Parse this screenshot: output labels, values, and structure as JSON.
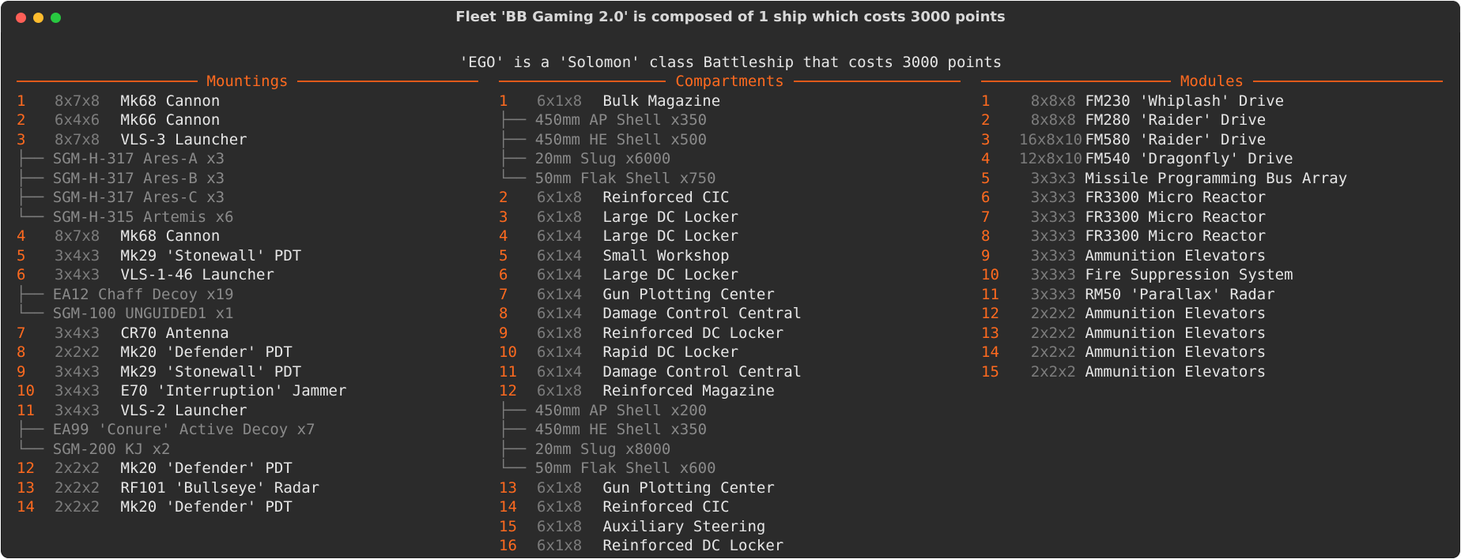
{
  "window": {
    "title": "Fleet 'BB Gaming 2.0' is composed of 1 ship which costs 3000 points"
  },
  "ship_heading": "'EGO' is a 'Solomon' class Battleship that costs 3000 points",
  "colors": {
    "accent": "#ff6a1f",
    "dim": "#7c7c7c",
    "text": "#e6e6e6",
    "bg": "#2b2b2b"
  },
  "mountings": {
    "title": "Mountings",
    "rows": [
      {
        "num": "1",
        "size": "8x7x8",
        "name": "Mk68 Cannon"
      },
      {
        "num": "2",
        "size": "6x4x6",
        "name": "Mk66 Cannon"
      },
      {
        "num": "3",
        "size": "8x7x8",
        "name": "VLS-3 Launcher"
      },
      {
        "tree": "├──",
        "sub": "SGM-H-317 Ares-A x3"
      },
      {
        "tree": "├──",
        "sub": "SGM-H-317 Ares-B x3"
      },
      {
        "tree": "├──",
        "sub": "SGM-H-317 Ares-C x3"
      },
      {
        "tree": "└──",
        "sub": "SGM-H-315 Artemis x6"
      },
      {
        "num": "4",
        "size": "8x7x8",
        "name": "Mk68 Cannon"
      },
      {
        "num": "5",
        "size": "3x4x3",
        "name": "Mk29 'Stonewall' PDT"
      },
      {
        "num": "6",
        "size": "3x4x3",
        "name": "VLS-1-46 Launcher"
      },
      {
        "tree": "├──",
        "sub": "EA12 Chaff Decoy x19"
      },
      {
        "tree": "└──",
        "sub": "SGM-100 UNGUIDED1 x1"
      },
      {
        "num": "7",
        "size": "3x4x3",
        "name": "CR70 Antenna"
      },
      {
        "num": "8",
        "size": "2x2x2",
        "name": "Mk20 'Defender' PDT"
      },
      {
        "num": "9",
        "size": "3x4x3",
        "name": "Mk29 'Stonewall' PDT"
      },
      {
        "num": "10",
        "size": "3x4x3",
        "name": "E70 'Interruption' Jammer"
      },
      {
        "num": "11",
        "size": "3x4x3",
        "name": "VLS-2 Launcher"
      },
      {
        "tree": "├──",
        "sub": "EA99 'Conure' Active Decoy x7"
      },
      {
        "tree": "└──",
        "sub": "SGM-200 KJ x2"
      },
      {
        "num": "12",
        "size": "2x2x2",
        "name": "Mk20 'Defender' PDT"
      },
      {
        "num": "13",
        "size": "2x2x2",
        "name": "RF101 'Bullseye' Radar"
      },
      {
        "num": "14",
        "size": "2x2x2",
        "name": "Mk20 'Defender' PDT"
      }
    ]
  },
  "compartments": {
    "title": "Compartments",
    "rows": [
      {
        "num": "1",
        "size": "6x1x8",
        "name": "Bulk Magazine"
      },
      {
        "tree": "├──",
        "sub": "450mm AP Shell x350"
      },
      {
        "tree": "├──",
        "sub": "450mm HE Shell x500"
      },
      {
        "tree": "├──",
        "sub": "20mm Slug x6000"
      },
      {
        "tree": "└──",
        "sub": "50mm Flak Shell x750"
      },
      {
        "num": "2",
        "size": "6x1x8",
        "name": "Reinforced CIC"
      },
      {
        "num": "3",
        "size": "6x1x8",
        "name": "Large DC Locker"
      },
      {
        "num": "4",
        "size": "6x1x4",
        "name": "Large DC Locker"
      },
      {
        "num": "5",
        "size": "6x1x4",
        "name": "Small Workshop"
      },
      {
        "num": "6",
        "size": "6x1x4",
        "name": "Large DC Locker"
      },
      {
        "num": "7",
        "size": "6x1x4",
        "name": "Gun Plotting Center"
      },
      {
        "num": "8",
        "size": "6x1x4",
        "name": "Damage Control Central"
      },
      {
        "num": "9",
        "size": "6x1x8",
        "name": "Reinforced DC Locker"
      },
      {
        "num": "10",
        "size": "6x1x4",
        "name": "Rapid DC Locker"
      },
      {
        "num": "11",
        "size": "6x1x4",
        "name": "Damage Control Central"
      },
      {
        "num": "12",
        "size": "6x1x8",
        "name": "Reinforced Magazine"
      },
      {
        "tree": "├──",
        "sub": "450mm AP Shell x200"
      },
      {
        "tree": "├──",
        "sub": "450mm HE Shell x350"
      },
      {
        "tree": "├──",
        "sub": "20mm Slug x8000"
      },
      {
        "tree": "└──",
        "sub": "50mm Flak Shell x600"
      },
      {
        "num": "13",
        "size": "6x1x8",
        "name": "Gun Plotting Center"
      },
      {
        "num": "14",
        "size": "6x1x8",
        "name": "Reinforced CIC"
      },
      {
        "num": "15",
        "size": "6x1x8",
        "name": "Auxiliary Steering"
      },
      {
        "num": "16",
        "size": "6x1x8",
        "name": "Reinforced DC Locker"
      }
    ]
  },
  "modules": {
    "title": "Modules",
    "rows": [
      {
        "num": "1",
        "size": "8x8x8",
        "name": "FM230 'Whiplash' Drive"
      },
      {
        "num": "2",
        "size": "8x8x8",
        "name": "FM280 'Raider' Drive"
      },
      {
        "num": "3",
        "size": "16x8x10",
        "name": "FM580 'Raider' Drive"
      },
      {
        "num": "4",
        "size": "12x8x10",
        "name": "FM540 'Dragonfly' Drive"
      },
      {
        "num": "5",
        "size": "3x3x3",
        "name": "Missile Programming Bus Array"
      },
      {
        "num": "6",
        "size": "3x3x3",
        "name": "FR3300 Micro Reactor"
      },
      {
        "num": "7",
        "size": "3x3x3",
        "name": "FR3300 Micro Reactor"
      },
      {
        "num": "8",
        "size": "3x3x3",
        "name": "FR3300 Micro Reactor"
      },
      {
        "num": "9",
        "size": "3x3x3",
        "name": "Ammunition Elevators"
      },
      {
        "num": "10",
        "size": "3x3x3",
        "name": "Fire Suppression System"
      },
      {
        "num": "11",
        "size": "3x3x3",
        "name": "RM50 'Parallax' Radar"
      },
      {
        "num": "12",
        "size": "2x2x2",
        "name": "Ammunition Elevators"
      },
      {
        "num": "13",
        "size": "2x2x2",
        "name": "Ammunition Elevators"
      },
      {
        "num": "14",
        "size": "2x2x2",
        "name": "Ammunition Elevators"
      },
      {
        "num": "15",
        "size": "2x2x2",
        "name": "Ammunition Elevators"
      }
    ]
  }
}
